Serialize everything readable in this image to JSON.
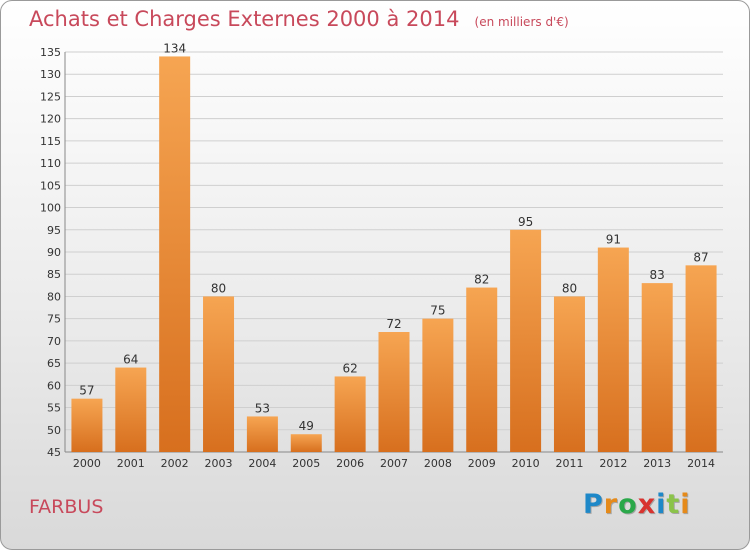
{
  "title": "Achats et Charges Externes 2000 à 2014",
  "subtitle": "(en milliers d'€)",
  "commune": "FARBUS",
  "logo": {
    "letters": [
      "P",
      "r",
      "o",
      "x",
      "i",
      "t",
      "i"
    ],
    "colors": [
      "#1e88c8",
      "#e58a1a",
      "#2aa84a",
      "#d8332f",
      "#1e88c8",
      "#8bc34a",
      "#e58a1a"
    ]
  },
  "colors": {
    "bar_top": "#f6a552",
    "bar_bottom": "#d76f1e",
    "grid": "#cfcfcf",
    "accent": "#c8495b"
  },
  "chart_data": {
    "type": "bar",
    "title": "Achats et Charges Externes 2000 à 2014",
    "subtitle": "(en milliers d'€)",
    "categories": [
      "2000",
      "2001",
      "2002",
      "2003",
      "2004",
      "2005",
      "2006",
      "2007",
      "2008",
      "2009",
      "2010",
      "2011",
      "2012",
      "2013",
      "2014"
    ],
    "values": [
      57,
      64,
      134,
      80,
      53,
      49,
      62,
      72,
      75,
      82,
      95,
      80,
      91,
      83,
      87
    ],
    "ylim": [
      45,
      135
    ],
    "yticks": [
      45,
      50,
      55,
      60,
      65,
      70,
      75,
      80,
      85,
      90,
      95,
      100,
      105,
      110,
      115,
      120,
      125,
      130,
      135
    ],
    "grid": true
  }
}
